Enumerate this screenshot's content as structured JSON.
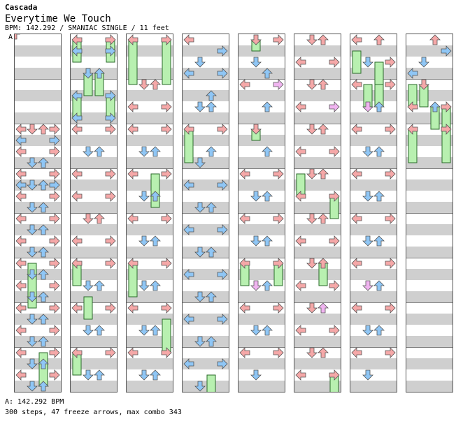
{
  "artist": "Cascada",
  "title": "Everytime We Touch",
  "info": "BPM: 142.292 / SMANIAC SINGLE / 11 feet",
  "section_marker": "A",
  "bpm_line": "A: 142.292 BPM",
  "stats": "300 steps, 47 freeze arrows, max combo 343",
  "colors": {
    "red": "#f5a8a8",
    "blue": "#8fc6f5",
    "green": "#b8f0b0",
    "pink": "#f0b4f0",
    "band": "#cfcfcf"
  },
  "columns": [
    {
      "notes": [
        [
          0,
          8,
          0
        ],
        [
          1,
          8,
          0
        ],
        [
          2,
          8,
          0
        ],
        [
          3,
          8,
          0
        ],
        [
          4,
          8,
          0
        ],
        [
          0,
          9,
          0
        ],
        [
          3,
          9,
          0
        ],
        [
          0,
          10,
          0
        ],
        [
          3,
          10,
          0
        ],
        [
          1,
          11,
          0
        ],
        [
          2,
          11,
          0
        ],
        [
          0,
          12,
          0
        ],
        [
          3,
          12,
          0
        ],
        [
          0,
          13,
          0
        ],
        [
          1,
          13,
          0
        ],
        [
          2,
          13,
          0
        ],
        [
          3,
          13,
          0
        ],
        [
          0,
          14,
          0
        ],
        [
          3,
          14,
          0
        ],
        [
          1,
          15,
          0
        ],
        [
          2,
          15,
          0
        ],
        [
          0,
          16,
          0
        ],
        [
          3,
          16,
          0
        ],
        [
          1,
          17,
          0
        ],
        [
          2,
          17,
          0
        ],
        [
          0,
          18,
          0
        ],
        [
          3,
          18,
          0
        ],
        [
          1,
          19,
          0
        ],
        [
          2,
          19,
          0
        ],
        [
          0,
          20,
          0
        ],
        [
          3,
          20,
          0
        ],
        [
          1,
          21,
          0
        ],
        [
          2,
          21,
          0
        ],
        [
          0,
          22,
          0
        ],
        [
          3,
          22,
          0
        ],
        [
          1,
          23,
          0
        ],
        [
          2,
          23,
          0
        ],
        [
          0,
          24,
          0
        ],
        [
          3,
          24,
          0
        ],
        [
          1,
          25,
          0
        ],
        [
          2,
          25,
          0
        ],
        [
          0,
          26,
          0
        ],
        [
          3,
          26,
          0
        ],
        [
          1,
          27,
          0
        ],
        [
          2,
          27,
          0
        ],
        [
          0,
          28,
          0
        ],
        [
          3,
          28,
          0
        ],
        [
          1,
          29,
          0
        ],
        [
          2,
          29,
          0
        ],
        [
          0,
          30,
          0
        ],
        [
          3,
          30,
          0
        ],
        [
          1,
          31,
          0
        ],
        [
          2,
          31,
          0
        ]
      ],
      "freezes": [
        [
          1,
          20,
          24
        ],
        [
          2,
          28,
          31
        ]
      ]
    },
    {
      "notes": [
        [
          0,
          0,
          0
        ],
        [
          3,
          0,
          0
        ],
        [
          0,
          1,
          0
        ],
        [
          3,
          1,
          0
        ],
        [
          1,
          3,
          0
        ],
        [
          2,
          3,
          0
        ],
        [
          0,
          5,
          0
        ],
        [
          3,
          5,
          0
        ],
        [
          0,
          7,
          0
        ],
        [
          3,
          7,
          0
        ],
        [
          0,
          8,
          0
        ],
        [
          3,
          8,
          0
        ],
        [
          1,
          10,
          0
        ],
        [
          2,
          10,
          0
        ],
        [
          0,
          12,
          0
        ],
        [
          3,
          12,
          0
        ],
        [
          0,
          14,
          0
        ],
        [
          3,
          14,
          0
        ],
        [
          1,
          16,
          0
        ],
        [
          2,
          16,
          0
        ],
        [
          0,
          18,
          0
        ],
        [
          3,
          18,
          0
        ],
        [
          0,
          20,
          0
        ],
        [
          3,
          20,
          0
        ],
        [
          1,
          22,
          0
        ],
        [
          2,
          22,
          0
        ],
        [
          0,
          24,
          0
        ],
        [
          3,
          24,
          0
        ],
        [
          1,
          26,
          0
        ],
        [
          2,
          26,
          0
        ],
        [
          0,
          28,
          0
        ],
        [
          3,
          28,
          0
        ],
        [
          1,
          30,
          0
        ],
        [
          2,
          30,
          0
        ]
      ],
      "freezes": [
        [
          0,
          0,
          2
        ],
        [
          3,
          0,
          2
        ],
        [
          1,
          3,
          5
        ],
        [
          2,
          3,
          5
        ],
        [
          0,
          5,
          7
        ],
        [
          3,
          5,
          7
        ],
        [
          0,
          20,
          22
        ],
        [
          1,
          23,
          25
        ],
        [
          0,
          28,
          30
        ]
      ]
    },
    {
      "notes": [
        [
          0,
          0,
          0
        ],
        [
          3,
          0,
          0
        ],
        [
          1,
          4,
          0
        ],
        [
          2,
          4,
          0
        ],
        [
          0,
          6,
          0
        ],
        [
          3,
          6,
          0
        ],
        [
          0,
          8,
          0
        ],
        [
          3,
          8,
          0
        ],
        [
          1,
          10,
          0
        ],
        [
          2,
          10,
          0
        ],
        [
          0,
          12,
          0
        ],
        [
          3,
          12,
          0
        ],
        [
          1,
          14,
          0
        ],
        [
          2,
          14,
          0
        ],
        [
          0,
          16,
          0
        ],
        [
          3,
          16,
          0
        ],
        [
          1,
          18,
          0
        ],
        [
          2,
          18,
          0
        ],
        [
          0,
          20,
          0
        ],
        [
          3,
          20,
          0
        ],
        [
          1,
          22,
          0
        ],
        [
          2,
          22,
          0
        ],
        [
          0,
          24,
          0
        ],
        [
          3,
          24,
          0
        ],
        [
          1,
          26,
          0
        ],
        [
          2,
          26,
          0
        ],
        [
          0,
          28,
          0
        ],
        [
          3,
          28,
          0
        ],
        [
          1,
          30,
          0
        ],
        [
          2,
          30,
          0
        ]
      ],
      "freezes": [
        [
          0,
          0,
          4
        ],
        [
          3,
          0,
          4
        ],
        [
          2,
          12,
          15
        ],
        [
          0,
          20,
          23
        ],
        [
          3,
          25,
          28
        ]
      ]
    },
    {
      "notes": [
        [
          0,
          0,
          0
        ],
        [
          3,
          1,
          0
        ],
        [
          1,
          2,
          0
        ],
        [
          0,
          3,
          0
        ],
        [
          3,
          3,
          0
        ],
        [
          2,
          5,
          0
        ],
        [
          1,
          6,
          0
        ],
        [
          2,
          6,
          0
        ],
        [
          0,
          8,
          0
        ],
        [
          3,
          8,
          0
        ],
        [
          2,
          10,
          0
        ],
        [
          1,
          11,
          0
        ],
        [
          0,
          13,
          0
        ],
        [
          3,
          13,
          0
        ],
        [
          1,
          15,
          0
        ],
        [
          2,
          15,
          0
        ],
        [
          0,
          17,
          0
        ],
        [
          3,
          17,
          0
        ],
        [
          1,
          19,
          0
        ],
        [
          2,
          19,
          0
        ],
        [
          0,
          21,
          0
        ],
        [
          3,
          21,
          0
        ],
        [
          1,
          23,
          0
        ],
        [
          2,
          23,
          0
        ],
        [
          0,
          25,
          0
        ],
        [
          3,
          25,
          0
        ],
        [
          1,
          27,
          0
        ],
        [
          2,
          27,
          0
        ],
        [
          0,
          29,
          0
        ],
        [
          3,
          29,
          0
        ],
        [
          1,
          31,
          0
        ]
      ],
      "freezes": [
        [
          0,
          8,
          11
        ],
        [
          2,
          30,
          32
        ]
      ]
    },
    {
      "notes": [
        [
          1,
          0,
          0
        ],
        [
          3,
          0,
          0
        ],
        [
          1,
          2,
          0
        ],
        [
          2,
          3,
          0
        ],
        [
          0,
          4,
          0
        ],
        [
          3,
          4,
          2
        ],
        [
          2,
          6,
          0
        ],
        [
          1,
          8,
          0
        ],
        [
          2,
          10,
          0
        ],
        [
          0,
          12,
          0
        ],
        [
          3,
          12,
          0
        ],
        [
          1,
          14,
          0
        ],
        [
          2,
          14,
          0
        ],
        [
          0,
          16,
          0
        ],
        [
          3,
          16,
          0
        ],
        [
          1,
          18,
          0
        ],
        [
          2,
          18,
          0
        ],
        [
          0,
          20,
          0
        ],
        [
          3,
          20,
          0
        ],
        [
          1,
          22,
          2
        ],
        [
          2,
          22,
          0
        ],
        [
          0,
          24,
          0
        ],
        [
          3,
          24,
          0
        ],
        [
          1,
          26,
          0
        ],
        [
          2,
          26,
          0
        ],
        [
          0,
          28,
          0
        ],
        [
          3,
          28,
          0
        ],
        [
          1,
          30,
          0
        ],
        [
          0,
          32,
          2
        ],
        [
          3,
          32,
          2
        ]
      ],
      "freezes": [
        [
          1,
          0,
          1
        ],
        [
          1,
          8,
          9
        ],
        [
          0,
          20,
          22
        ],
        [
          3,
          20,
          22
        ]
      ]
    },
    {
      "notes": [
        [
          1,
          0,
          0
        ],
        [
          2,
          0,
          0
        ],
        [
          0,
          2,
          0
        ],
        [
          3,
          2,
          0
        ],
        [
          1,
          4,
          0
        ],
        [
          2,
          4,
          0
        ],
        [
          0,
          6,
          0
        ],
        [
          3,
          6,
          2
        ],
        [
          1,
          8,
          0
        ],
        [
          2,
          8,
          0
        ],
        [
          0,
          10,
          0
        ],
        [
          3,
          10,
          0
        ],
        [
          1,
          12,
          0
        ],
        [
          2,
          12,
          0
        ],
        [
          0,
          14,
          0
        ],
        [
          3,
          14,
          0
        ],
        [
          1,
          16,
          0
        ],
        [
          2,
          16,
          0
        ],
        [
          0,
          18,
          0
        ],
        [
          3,
          18,
          0
        ],
        [
          1,
          20,
          0
        ],
        [
          2,
          20,
          0
        ],
        [
          0,
          22,
          0
        ],
        [
          3,
          22,
          0
        ],
        [
          1,
          24,
          0
        ],
        [
          2,
          24,
          2
        ],
        [
          0,
          26,
          0
        ],
        [
          3,
          26,
          0
        ],
        [
          1,
          28,
          0
        ],
        [
          2,
          28,
          0
        ],
        [
          0,
          30,
          0
        ],
        [
          3,
          30,
          0
        ],
        [
          2,
          32,
          2
        ]
      ],
      "freezes": [
        [
          0,
          12,
          14
        ],
        [
          3,
          14,
          16
        ],
        [
          2,
          20,
          22
        ],
        [
          3,
          30,
          32
        ]
      ]
    },
    {
      "notes": [
        [
          0,
          0,
          0
        ],
        [
          2,
          0,
          0
        ],
        [
          1,
          2,
          0
        ],
        [
          3,
          2,
          0
        ],
        [
          0,
          4,
          0
        ],
        [
          3,
          4,
          0
        ],
        [
          1,
          6,
          2
        ],
        [
          2,
          6,
          0
        ],
        [
          0,
          8,
          0
        ],
        [
          3,
          8,
          0
        ],
        [
          1,
          10,
          0
        ],
        [
          2,
          10,
          0
        ],
        [
          0,
          12,
          0
        ],
        [
          3,
          12,
          0
        ],
        [
          1,
          14,
          0
        ],
        [
          2,
          14,
          0
        ],
        [
          0,
          16,
          0
        ],
        [
          3,
          16,
          0
        ],
        [
          1,
          18,
          0
        ],
        [
          2,
          18,
          0
        ],
        [
          0,
          20,
          0
        ],
        [
          3,
          20,
          0
        ],
        [
          1,
          22,
          2
        ],
        [
          2,
          22,
          0
        ],
        [
          0,
          24,
          0
        ],
        [
          3,
          24,
          0
        ],
        [
          1,
          26,
          0
        ],
        [
          2,
          26,
          0
        ],
        [
          0,
          28,
          0
        ],
        [
          3,
          28,
          0
        ],
        [
          1,
          30,
          0
        ],
        [
          3,
          32,
          2
        ]
      ],
      "freezes": [
        [
          0,
          1,
          3
        ],
        [
          2,
          2,
          4
        ],
        [
          1,
          4,
          6
        ],
        [
          2,
          4,
          6
        ]
      ]
    },
    {
      "notes": [
        [
          2,
          0,
          0
        ],
        [
          3,
          1,
          0
        ],
        [
          1,
          2,
          0
        ],
        [
          0,
          3,
          0
        ],
        [
          1,
          4,
          0
        ],
        [
          0,
          6,
          0
        ],
        [
          2,
          6,
          0
        ],
        [
          3,
          6,
          0
        ],
        [
          0,
          8,
          0
        ],
        [
          3,
          8,
          0
        ]
      ],
      "freezes": [
        [
          0,
          4,
          6
        ],
        [
          1,
          4,
          6
        ],
        [
          2,
          6,
          8
        ],
        [
          3,
          6,
          8
        ],
        [
          0,
          8,
          11
        ],
        [
          3,
          8,
          11
        ]
      ]
    }
  ]
}
